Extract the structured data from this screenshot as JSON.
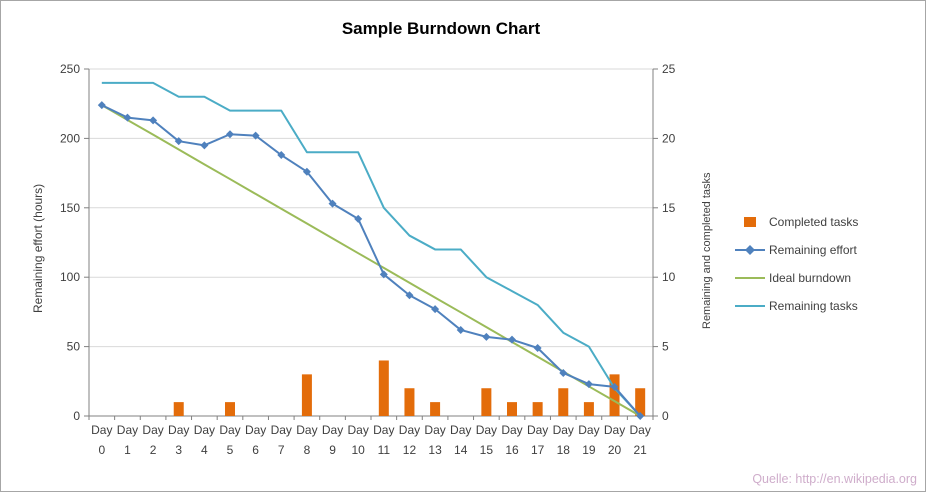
{
  "chart_data": {
    "type": "combo",
    "title": "Sample Burndown Chart",
    "categories": [
      "Day 0",
      "Day 1",
      "Day 2",
      "Day 3",
      "Day 4",
      "Day 5",
      "Day 6",
      "Day 7",
      "Day 8",
      "Day 9",
      "Day 10",
      "Day 11",
      "Day 12",
      "Day 13",
      "Day 14",
      "Day 15",
      "Day 16",
      "Day 17",
      "Day 18",
      "Day 19",
      "Day 20",
      "Day 21"
    ],
    "left_axis": {
      "label": "Remaining effort (hours)",
      "min": 0,
      "max": 250,
      "step": 50
    },
    "right_axis": {
      "label": "Remaining and  completed tasks",
      "min": 0,
      "max": 25,
      "step": 5
    },
    "grid": true,
    "legend_position": "right",
    "series": [
      {
        "name": "Completed tasks",
        "type": "bar",
        "axis": "right",
        "color": "#E36C0A",
        "values": [
          0,
          0,
          0,
          1,
          0,
          1,
          0,
          0,
          3,
          0,
          0,
          4,
          2,
          1,
          0,
          2,
          1,
          1,
          2,
          1,
          3,
          2
        ]
      },
      {
        "name": "Remaining effort",
        "type": "line",
        "marker": "diamond",
        "axis": "left",
        "color": "#4F81BD",
        "values": [
          224,
          215,
          213,
          198,
          195,
          203,
          202,
          188,
          176,
          153,
          142,
          102,
          87,
          77,
          62,
          57,
          55,
          49,
          31,
          23,
          21,
          0
        ]
      },
      {
        "name": "Ideal burndown",
        "type": "line",
        "axis": "left",
        "color": "#9BBB59",
        "values": [
          224,
          213.3,
          202.7,
          192,
          181.3,
          170.7,
          160,
          149.3,
          138.7,
          128,
          117.3,
          106.7,
          96,
          85.3,
          74.7,
          64,
          53.3,
          42.7,
          32,
          21.3,
          10.7,
          0
        ]
      },
      {
        "name": "Remaining tasks",
        "type": "line",
        "axis": "right",
        "color": "#4BACC6",
        "values": [
          24,
          24,
          24,
          23,
          23,
          22,
          22,
          22,
          19,
          19,
          19,
          15,
          13,
          12,
          12,
          10,
          9,
          8,
          6,
          5,
          2,
          0
        ]
      }
    ],
    "source": "Quelle: http://en.wikipedia.org"
  }
}
